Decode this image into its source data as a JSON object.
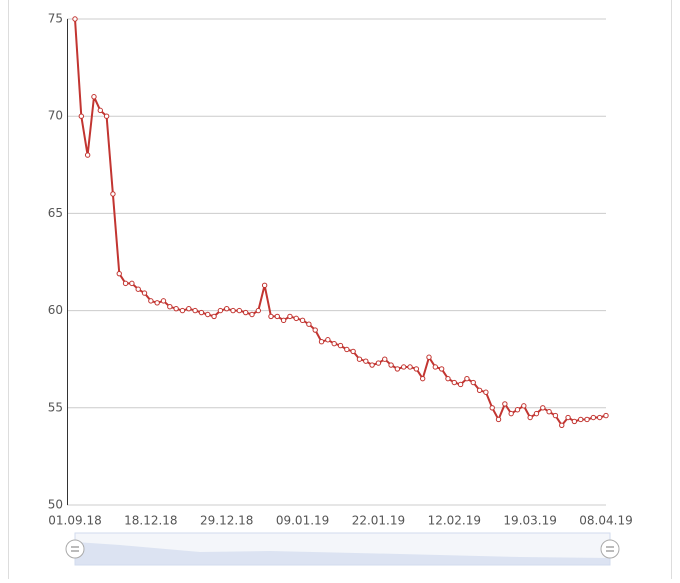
{
  "chart_data": {
    "type": "line",
    "categories": [
      "01.09.18",
      null,
      null,
      null,
      null,
      null,
      null,
      null,
      null,
      null,
      null,
      null,
      "18.12.18",
      null,
      null,
      null,
      null,
      null,
      null,
      null,
      null,
      null,
      null,
      null,
      "29.12.18",
      null,
      null,
      null,
      null,
      null,
      null,
      null,
      null,
      null,
      null,
      null,
      "09.01.19",
      null,
      null,
      null,
      null,
      null,
      null,
      null,
      null,
      null,
      null,
      null,
      "22.01.19",
      null,
      null,
      null,
      null,
      null,
      null,
      null,
      null,
      null,
      null,
      null,
      "12.02.19",
      null,
      null,
      null,
      null,
      null,
      null,
      null,
      null,
      null,
      null,
      null,
      "19.03.19",
      null,
      null,
      null,
      null,
      null,
      null,
      null,
      null,
      null,
      null,
      null,
      "08.04.19"
    ],
    "series": [
      {
        "color": "#c23531",
        "values": [
          75,
          70,
          68,
          71,
          70.3,
          70,
          66,
          61.9,
          61.4,
          61.4,
          61.1,
          60.9,
          60.5,
          60.4,
          60.5,
          60.2,
          60.1,
          60.0,
          60.1,
          60.0,
          59.9,
          59.8,
          59.7,
          60.0,
          60.1,
          60.0,
          60.0,
          59.9,
          59.8,
          60.0,
          61.3,
          59.7,
          59.7,
          59.5,
          59.7,
          59.6,
          59.5,
          59.3,
          59.0,
          58.4,
          58.5,
          58.3,
          58.2,
          58.0,
          57.9,
          57.5,
          57.4,
          57.2,
          57.3,
          57.5,
          57.2,
          57.0,
          57.1,
          57.1,
          57.0,
          56.5,
          57.6,
          57.1,
          57.0,
          56.5,
          56.3,
          56.2,
          56.5,
          56.3,
          55.9,
          55.8,
          55.0,
          54.4,
          55.2,
          54.7,
          54.9,
          55.1,
          54.5,
          54.7,
          55.0,
          54.8,
          54.6,
          54.1,
          54.5,
          54.3,
          54.4,
          54.4,
          54.5,
          54.5,
          54.6
        ]
      }
    ],
    "ylim": [
      50,
      75
    ],
    "yticks": [
      50,
      55,
      60,
      65,
      70,
      75
    ],
    "grid": true
  }
}
